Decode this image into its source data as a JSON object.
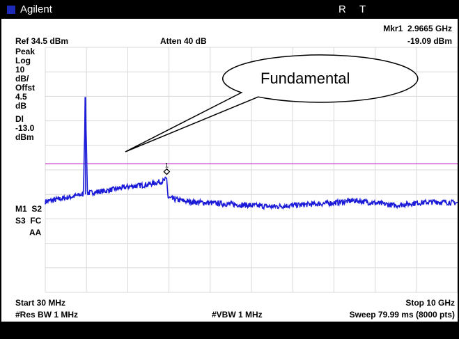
{
  "window": {
    "title": "Agilent",
    "indicators": [
      "R",
      "T"
    ]
  },
  "marker": {
    "name": "Mkr1",
    "frequency": "2.9665 GHz",
    "amplitude": "-19.09 dBm",
    "id": "1"
  },
  "header": {
    "ref": "Ref 34.5 dBm",
    "atten": "Atten 40 dB"
  },
  "left_panel": {
    "lines": [
      "Peak",
      "Log",
      "10",
      "dB/",
      "Offst",
      "4.5",
      "dB",
      "",
      "Dl",
      "-13.0",
      "dBm"
    ]
  },
  "status": {
    "line1": "M1  S2",
    "line2": "S3  FC",
    "line3": "AA"
  },
  "footer": {
    "start": "Start 30 MHz",
    "stop": "Stop 10 GHz",
    "res_bw": "#Res BW 1 MHz",
    "vbw": "#VBW 1 MHz",
    "sweep": "Sweep 79.99 ms (8000 pts)"
  },
  "annotation": {
    "label": "Fundamental"
  },
  "colors": {
    "trace": "#1a1ad8",
    "display_line": "#c000c0",
    "grid": "#d8d8d8",
    "titlebar": "#000000"
  },
  "chart_data": {
    "type": "line",
    "x_range_ghz": [
      0.03,
      10
    ],
    "y_range_dbm": [
      -65.5,
      34.5
    ],
    "display_line_dbm": -13.0,
    "grid": true,
    "fundamental": {
      "frequency_ghz": 1.0,
      "amplitude_dbm": 14.0
    },
    "series": [
      {
        "x": [
          0.03,
          0.5,
          0.95,
          1.0,
          1.05,
          1.5,
          2.0,
          2.5,
          2.9,
          2.9665,
          3.0,
          3.5,
          4.0,
          4.5,
          5.0,
          5.5,
          6.0,
          6.5,
          7.0,
          7.5,
          8.0,
          8.5,
          9.0,
          9.5,
          10.0
        ],
        "y": [
          -28.5,
          -27.0,
          -25.5,
          14.0,
          -25.0,
          -24.0,
          -22.5,
          -21.5,
          -20.0,
          -19.09,
          -27.0,
          -28.5,
          -29.0,
          -29.5,
          -30.0,
          -30.5,
          -30.0,
          -29.5,
          -29.0,
          -28.0,
          -29.0,
          -30.0,
          -29.0,
          -28.5,
          -29.0
        ]
      }
    ]
  }
}
